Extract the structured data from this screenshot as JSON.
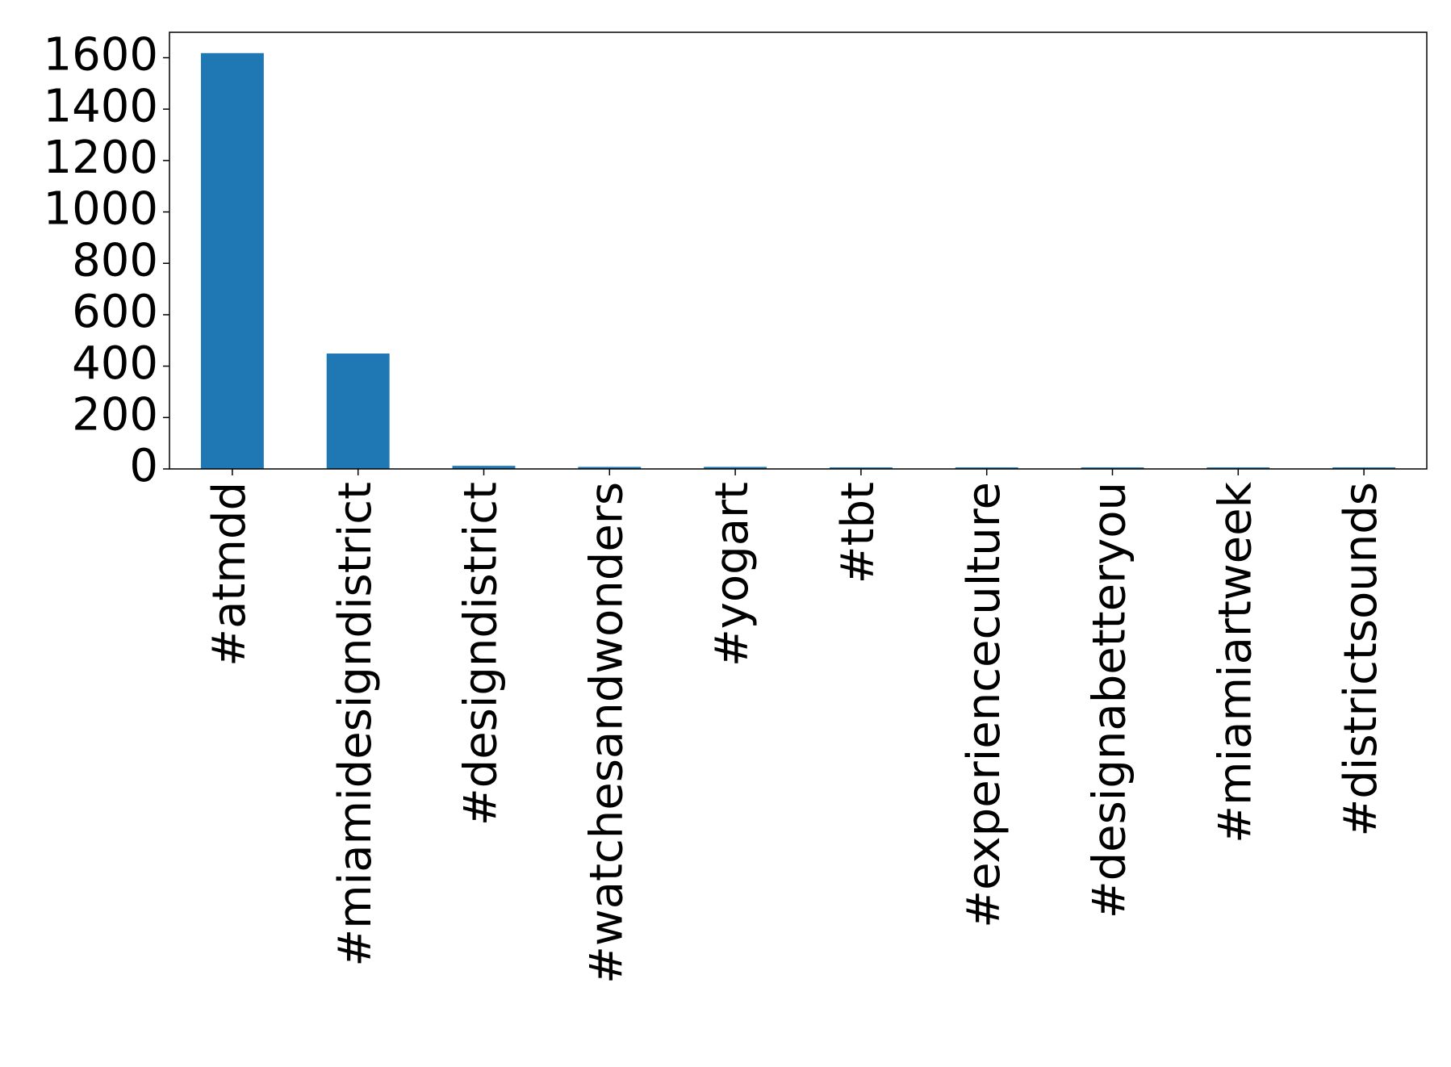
{
  "chart_data": {
    "type": "bar",
    "categories": [
      "#atmdd",
      "#miamidesigndistrict",
      "#designdistrict",
      "#watchesandwonders",
      "#yogart",
      "#tbt",
      "#experienceculture",
      "#designabetteryou",
      "#miamiartweek",
      "#districtsounds"
    ],
    "values": [
      1618,
      449,
      12,
      8,
      8,
      6,
      6,
      6,
      6,
      6
    ],
    "color": "#1f77b4",
    "ylim": [
      0,
      1699
    ],
    "yticks": [
      0,
      200,
      400,
      600,
      800,
      1000,
      1200,
      1400,
      1600
    ],
    "grid": false
  }
}
